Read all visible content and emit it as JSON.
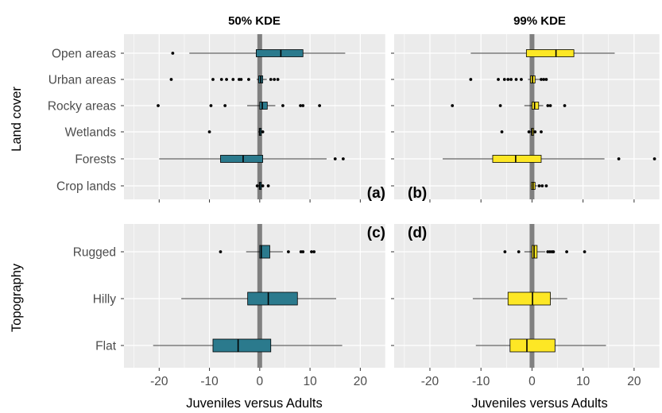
{
  "chart_data": {
    "type": "boxplot",
    "columns": [
      "50% KDE",
      "99% KDE"
    ],
    "rows": [
      "Land cover",
      "Topography"
    ],
    "xlabel": "Juveniles versus Adults",
    "xlim": [
      -27,
      25
    ],
    "xticks": [
      -20,
      -10,
      0,
      10,
      20
    ],
    "x_tick_labels": [
      "-20",
      "-10",
      "0",
      "10",
      "20"
    ],
    "zero_line": 0,
    "grid": true,
    "colors": {
      "50% KDE": "#2b7a8d",
      "99% KDE": "#fde725",
      "panel_bg": "#ebebeb",
      "grid": "#ffffff",
      "zero_line": "#808080"
    },
    "panels": [
      {
        "tag": "(a)",
        "column": "50% KDE",
        "row": "Land cover",
        "categories": [
          "Open areas",
          "Urban areas",
          "Rocky areas",
          "Wetlands",
          "Forests",
          "Crop lands"
        ],
        "boxes": [
          {
            "category": "Open areas",
            "whislo": -14,
            "q1": -0.7,
            "med": 4.2,
            "q3": 8.6,
            "whishi": 17,
            "outliers": [
              -17.3
            ]
          },
          {
            "category": "Urban areas",
            "whislo": -0.6,
            "q1": -0.2,
            "med": 0.2,
            "q3": 0.6,
            "whishi": 1.4,
            "outliers": [
              -17.6,
              -9.3,
              -7.6,
              -6.6,
              -5.3,
              -4.1,
              -3.7,
              -2.2,
              2.2,
              2.9,
              3.6
            ]
          },
          {
            "category": "Rocky areas",
            "whislo": -2.5,
            "q1": 0,
            "med": 0.5,
            "q3": 1.5,
            "whishi": 3.1,
            "outliers": [
              -20.2,
              -9.7,
              -6.9,
              4.6,
              8.1,
              8.6,
              11.9
            ]
          },
          {
            "category": "Wetlands",
            "whislo": -0.3,
            "q1": -0.1,
            "med": 0,
            "q3": 0.1,
            "whishi": 0.4,
            "outliers": [
              -10,
              0.6
            ]
          },
          {
            "category": "Forests",
            "whislo": -20,
            "q1": -7.8,
            "med": -3.3,
            "q3": 0.6,
            "whishi": 13.3,
            "outliers": [
              15,
              16.6
            ]
          },
          {
            "category": "Crop lands",
            "whislo": -0.3,
            "q1": -0.1,
            "med": 0,
            "q3": 0.1,
            "whishi": 0.4,
            "outliers": [
              -0.5,
              0.6,
              1.7
            ]
          }
        ]
      },
      {
        "tag": "(b)",
        "column": "99% KDE",
        "row": "Land cover",
        "categories": [
          "Open areas",
          "Urban areas",
          "Rocky areas",
          "Wetlands",
          "Forests",
          "Crop lands"
        ],
        "boxes": [
          {
            "category": "Open areas",
            "whislo": -12,
            "q1": -1.1,
            "med": 4.7,
            "q3": 8.2,
            "whishi": 16.2,
            "outliers": []
          },
          {
            "category": "Urban areas",
            "whislo": -0.8,
            "q1": -0.3,
            "med": 0.1,
            "q3": 0.6,
            "whishi": 1.5,
            "outliers": [
              -12,
              -6.6,
              -5.4,
              -4.7,
              -4.1,
              -3.1,
              -2.1,
              1.8,
              2.3,
              2.8
            ]
          },
          {
            "category": "Rocky areas",
            "whislo": -1.5,
            "q1": 0,
            "med": 0.5,
            "q3": 1.3,
            "whishi": 2.2,
            "outliers": [
              -15.6,
              -6.2,
              3.1,
              3.6,
              6.4
            ]
          },
          {
            "category": "Wetlands",
            "whislo": -0.3,
            "q1": -0.1,
            "med": 0,
            "q3": 0.1,
            "whishi": 0.4,
            "outliers": [
              -5.9,
              -0.6,
              0.6,
              1.8
            ]
          },
          {
            "category": "Forests",
            "whislo": -17.5,
            "q1": -7.7,
            "med": -3.2,
            "q3": 1.8,
            "whishi": 14.2,
            "outliers": [
              17,
              24
            ]
          },
          {
            "category": "Crop lands",
            "whislo": -0.2,
            "q1": -0.1,
            "med": 0.2,
            "q3": 0.6,
            "whishi": 1,
            "outliers": [
              1.4,
              2,
              2.8
            ]
          }
        ]
      },
      {
        "tag": "(c)",
        "column": "50% KDE",
        "row": "Topography",
        "categories": [
          "Rugged",
          "Hilly",
          "Flat"
        ],
        "boxes": [
          {
            "category": "Rugged",
            "whislo": -2.7,
            "q1": 0,
            "med": 0.3,
            "q3": 2,
            "whishi": 4.6,
            "outliers": [
              -7.8,
              5.7,
              8.2,
              8.6,
              10.3,
              10.8
            ]
          },
          {
            "category": "Hilly",
            "whislo": -15.6,
            "q1": -2.4,
            "med": 1.7,
            "q3": 7.5,
            "whishi": 15.2,
            "outliers": []
          },
          {
            "category": "Flat",
            "whislo": -21.2,
            "q1": -9.3,
            "med": -4.3,
            "q3": 2.2,
            "whishi": 16.4,
            "outliers": []
          }
        ]
      },
      {
        "tag": "(d)",
        "column": "99% KDE",
        "row": "Topography",
        "categories": [
          "Rugged",
          "Hilly",
          "Flat"
        ],
        "boxes": [
          {
            "category": "Rugged",
            "whislo": -1.5,
            "q1": 0,
            "med": 0.4,
            "q3": 1,
            "whishi": 2.6,
            "outliers": [
              -5.3,
              -2.6,
              3.1,
              3.5,
              3.9,
              4.2,
              6.8,
              10.3
            ]
          },
          {
            "category": "Hilly",
            "whislo": -11.6,
            "q1": -4.7,
            "med": 0.1,
            "q3": 3.6,
            "whishi": 6.9,
            "outliers": []
          },
          {
            "category": "Flat",
            "whislo": -11,
            "q1": -4.3,
            "med": -1,
            "q3": 4.5,
            "whishi": 14.5,
            "outliers": []
          }
        ]
      }
    ]
  }
}
